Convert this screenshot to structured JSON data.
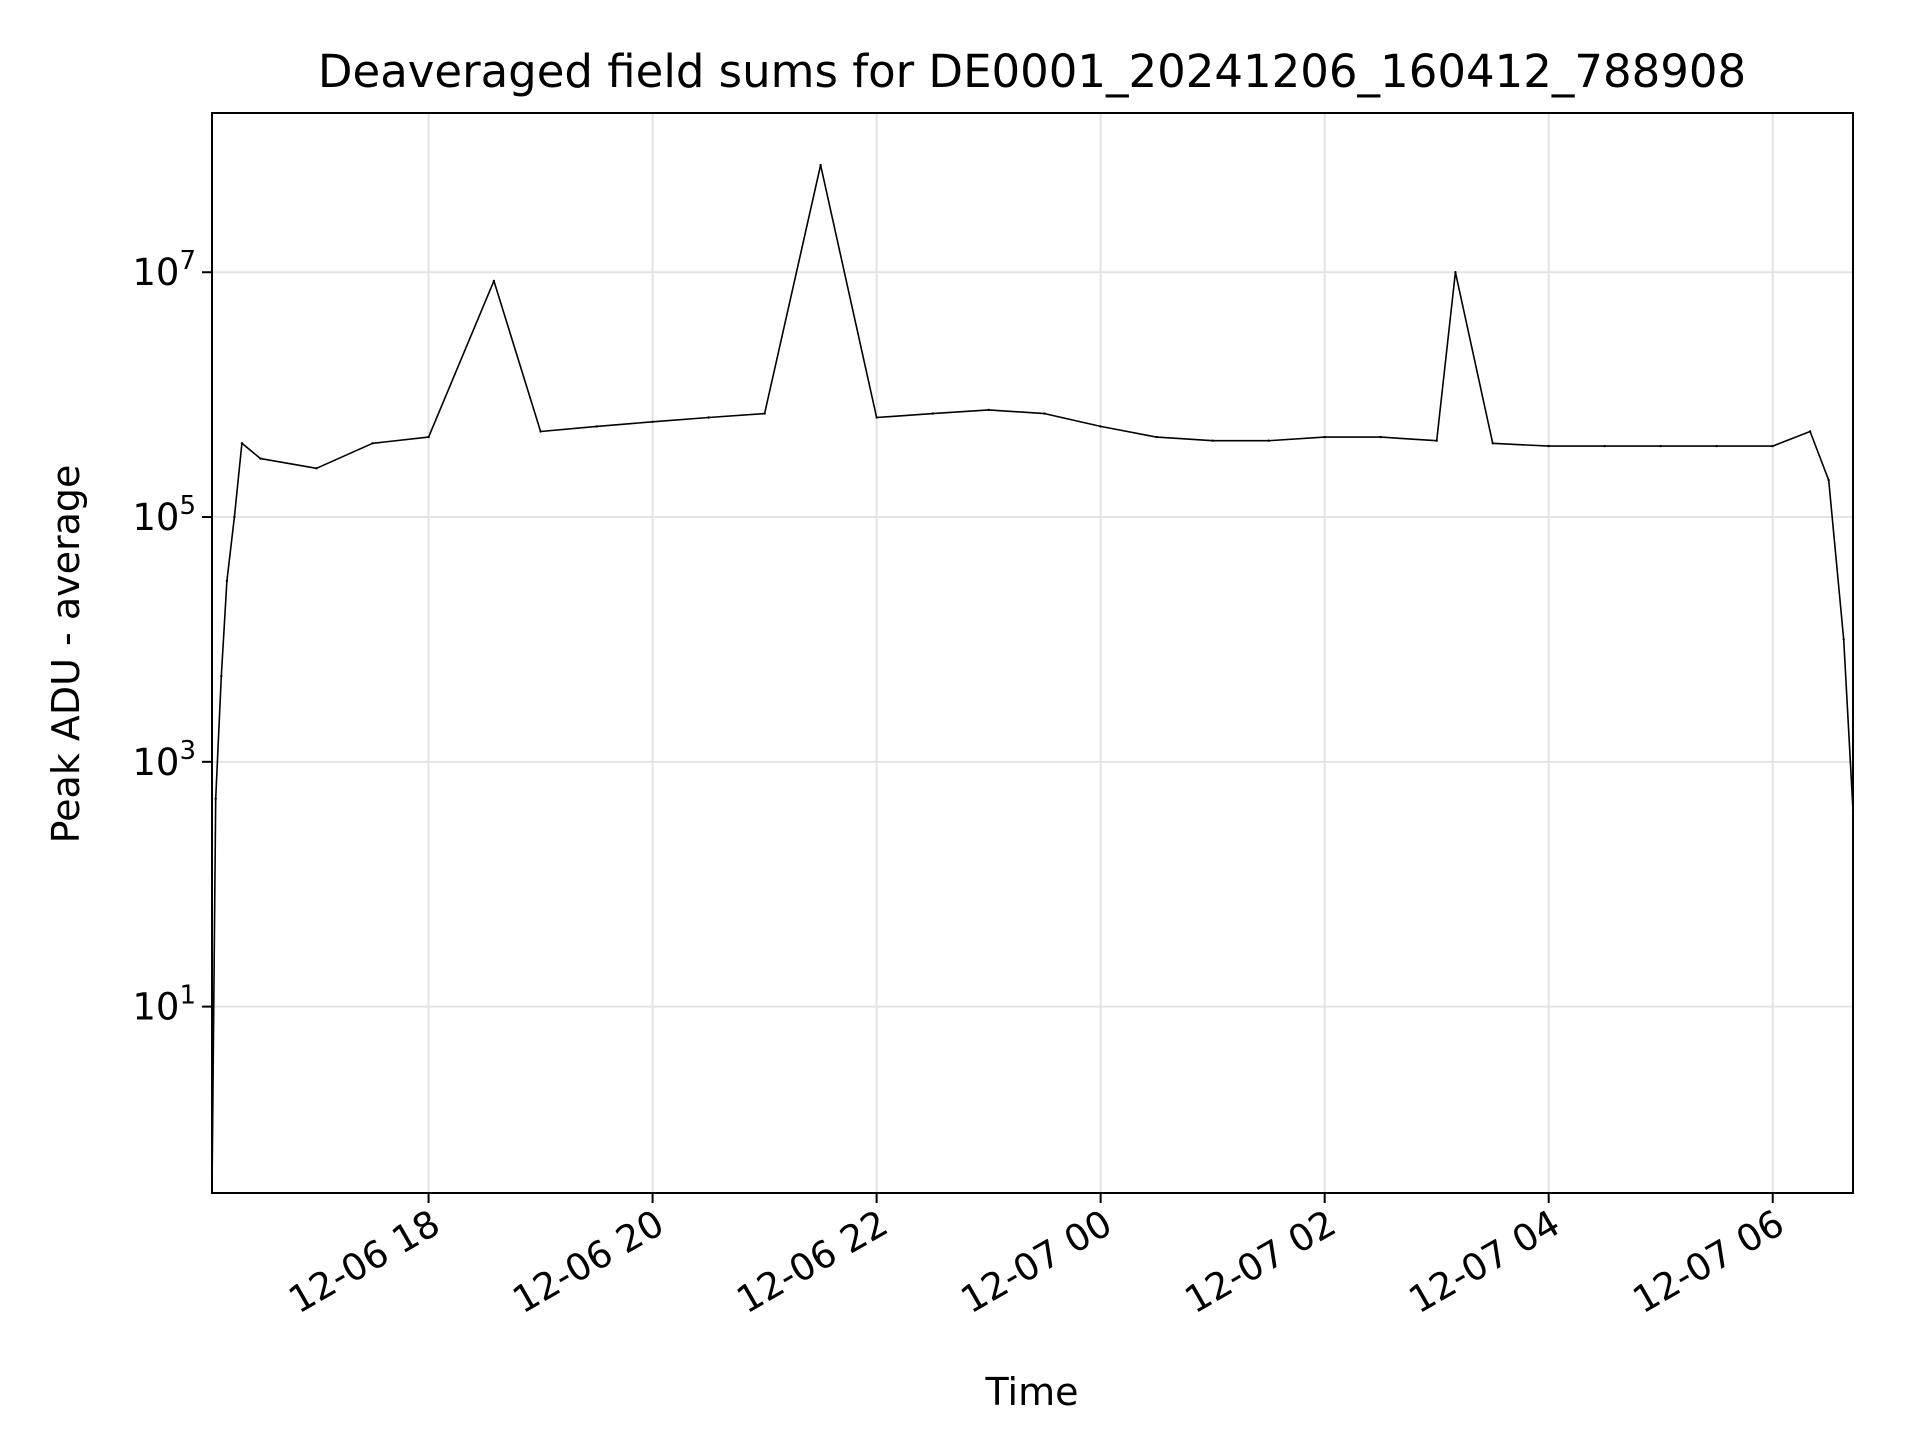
{
  "chart_data": {
    "type": "line",
    "title": "Deaveraged field sums for DE0001_20241206_160412_788908",
    "xlabel": "Time",
    "ylabel": "Peak ADU - average",
    "yscale": "log",
    "ylim": [
      0.3,
      200000000.0
    ],
    "xlim": [
      "2024-12-06 16:04",
      "2024-12-07 06:43"
    ],
    "grid": true,
    "line_color": "#000000",
    "x_ticks": [
      "12-06 18",
      "12-06 20",
      "12-06 22",
      "12-07 00",
      "12-07 02",
      "12-07 04",
      "12-07 06"
    ],
    "x_tick_values": [
      "2024-12-06 18:00",
      "2024-12-06 20:00",
      "2024-12-06 22:00",
      "2024-12-07 00:00",
      "2024-12-07 02:00",
      "2024-12-07 04:00",
      "2024-12-07 06:00"
    ],
    "y_ticks": [
      {
        "base": "10",
        "exp": "1",
        "value": 10
      },
      {
        "base": "10",
        "exp": "3",
        "value": 1000
      },
      {
        "base": "10",
        "exp": "5",
        "value": 100000
      },
      {
        "base": "10",
        "exp": "7",
        "value": 10000000
      }
    ],
    "series": [
      {
        "points": [
          [
            "2024-12-06 16:04",
            0.3
          ],
          [
            "2024-12-06 16:06",
            500
          ],
          [
            "2024-12-06 16:09",
            5000
          ],
          [
            "2024-12-06 16:12",
            30000
          ],
          [
            "2024-12-06 16:16",
            100000
          ],
          [
            "2024-12-06 16:20",
            400000
          ],
          [
            "2024-12-06 16:30",
            300000
          ],
          [
            "2024-12-06 17:00",
            250000
          ],
          [
            "2024-12-06 17:30",
            400000
          ],
          [
            "2024-12-06 18:00",
            450000
          ],
          [
            "2024-12-06 18:35",
            8500000
          ],
          [
            "2024-12-06 19:00",
            500000
          ],
          [
            "2024-12-06 19:30",
            550000
          ],
          [
            "2024-12-06 20:00",
            600000
          ],
          [
            "2024-12-06 20:30",
            650000
          ],
          [
            "2024-12-06 21:00",
            700000
          ],
          [
            "2024-12-06 21:30",
            75000000
          ],
          [
            "2024-12-06 22:00",
            650000
          ],
          [
            "2024-12-06 22:30",
            700000
          ],
          [
            "2024-12-06 23:00",
            750000
          ],
          [
            "2024-12-06 23:30",
            700000
          ],
          [
            "2024-12-07 00:00",
            550000
          ],
          [
            "2024-12-07 00:30",
            450000
          ],
          [
            "2024-12-07 01:00",
            420000
          ],
          [
            "2024-12-07 01:30",
            420000
          ],
          [
            "2024-12-07 02:00",
            450000
          ],
          [
            "2024-12-07 02:30",
            450000
          ],
          [
            "2024-12-07 03:00",
            420000
          ],
          [
            "2024-12-07 03:10",
            10000000
          ],
          [
            "2024-12-07 03:30",
            400000
          ],
          [
            "2024-12-07 04:00",
            380000
          ],
          [
            "2024-12-07 04:30",
            380000
          ],
          [
            "2024-12-07 05:00",
            380000
          ],
          [
            "2024-12-07 05:30",
            380000
          ],
          [
            "2024-12-07 06:00",
            380000
          ],
          [
            "2024-12-07 06:20",
            500000
          ],
          [
            "2024-12-07 06:30",
            200000
          ],
          [
            "2024-12-07 06:38",
            10000
          ],
          [
            "2024-12-07 06:43",
            400
          ]
        ]
      }
    ]
  }
}
